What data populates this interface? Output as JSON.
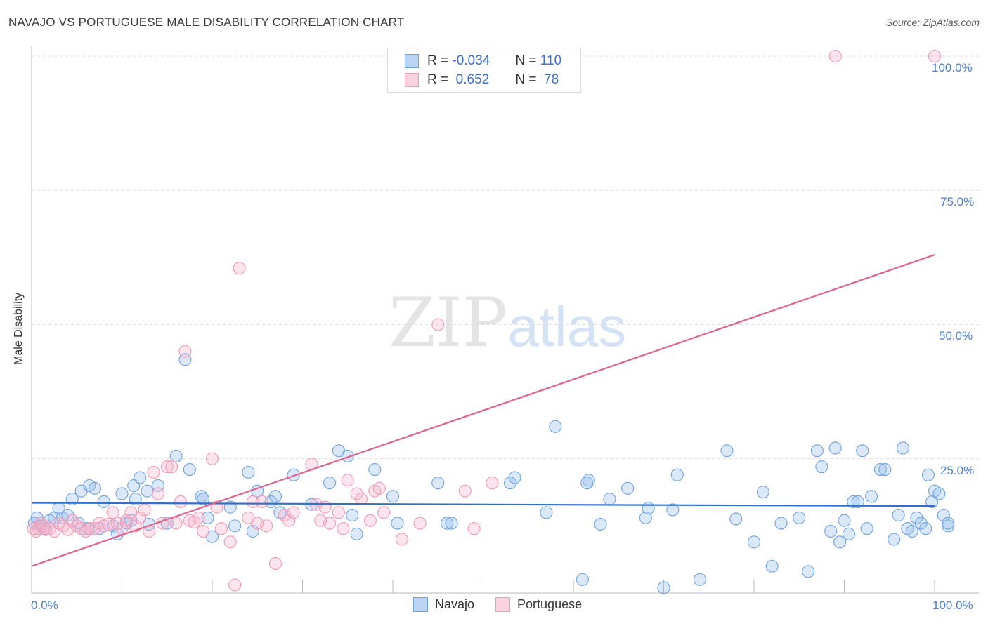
{
  "title": "NAVAJO VS PORTUGUESE MALE DISABILITY CORRELATION CHART",
  "source": "Source: ZipAtlas.com",
  "watermark_zip": "ZIP",
  "watermark_atlas": "atlas",
  "legend": {
    "row1": {
      "r_label": "R = ",
      "r_value": "-0.034",
      "n_label": "N = ",
      "n_value": "110"
    },
    "row2": {
      "r_label": "R = ",
      "r_value": " 0.652",
      "n_label": "N = ",
      "n_value": " 78"
    }
  },
  "bottom_legend": {
    "navajo": "Navajo",
    "portuguese": "Portuguese"
  },
  "axis": {
    "x_min_label": "0.0%",
    "x_max_label": "100.0%",
    "y_labels": [
      "25.0%",
      "50.0%",
      "75.0%",
      "100.0%"
    ]
  },
  "chart_data": {
    "type": "scatter",
    "title": "NAVAJO VS PORTUGUESE MALE DISABILITY CORRELATION CHART",
    "xlabel": "",
    "ylabel": "Male Disability",
    "xlim": [
      0,
      100
    ],
    "ylim": [
      0,
      100
    ],
    "grid": true,
    "legend_placement": "top-center",
    "colors": {
      "navajo": "#6fa3e0",
      "portuguese": "#f19ab8",
      "navajo_line": "#2e6fd0",
      "portuguese_line": "#e0638f"
    },
    "series": [
      {
        "name": "Navajo",
        "r": -0.034,
        "n": 110,
        "trend": [
          [
            0,
            16.8
          ],
          [
            100,
            16.2
          ]
        ],
        "points": [
          [
            0.3,
            13
          ],
          [
            0.6,
            14
          ],
          [
            1,
            12.5
          ],
          [
            1.4,
            12
          ],
          [
            2,
            13.5
          ],
          [
            2.5,
            14
          ],
          [
            3,
            15.8
          ],
          [
            3.4,
            14
          ],
          [
            4,
            14.5
          ],
          [
            4.5,
            17.5
          ],
          [
            5.2,
            13
          ],
          [
            5.5,
            19
          ],
          [
            6.2,
            12
          ],
          [
            6.4,
            20
          ],
          [
            7,
            19.5
          ],
          [
            7.5,
            12
          ],
          [
            8,
            17
          ],
          [
            9,
            12.5
          ],
          [
            9.5,
            11
          ],
          [
            10,
            18.5
          ],
          [
            10.5,
            13
          ],
          [
            11,
            13.5
          ],
          [
            11.3,
            20
          ],
          [
            11.5,
            17.5
          ],
          [
            12,
            21.5
          ],
          [
            12.8,
            19
          ],
          [
            13,
            12.8
          ],
          [
            14,
            20
          ],
          [
            15,
            13
          ],
          [
            16,
            25.5
          ],
          [
            17,
            43.5
          ],
          [
            17.5,
            23
          ],
          [
            18.8,
            18
          ],
          [
            19,
            17.5
          ],
          [
            19.5,
            14
          ],
          [
            20,
            10.5
          ],
          [
            22,
            16
          ],
          [
            22.5,
            12.5
          ],
          [
            24,
            22.5
          ],
          [
            24.5,
            11.5
          ],
          [
            25,
            19
          ],
          [
            26.5,
            17
          ],
          [
            27,
            18
          ],
          [
            27.5,
            15
          ],
          [
            29,
            22
          ],
          [
            31,
            16.5
          ],
          [
            33,
            20.5
          ],
          [
            34,
            26.5
          ],
          [
            35,
            25.5
          ],
          [
            35.5,
            14.5
          ],
          [
            36,
            11
          ],
          [
            38,
            23
          ],
          [
            40,
            18
          ],
          [
            40.5,
            13
          ],
          [
            45,
            20.5
          ],
          [
            46,
            13
          ],
          [
            46.5,
            13
          ],
          [
            53,
            20.5
          ],
          [
            53.5,
            21.5
          ],
          [
            57,
            15
          ],
          [
            58,
            31
          ],
          [
            61,
            2.5
          ],
          [
            61.5,
            20.5
          ],
          [
            61.7,
            21
          ],
          [
            63,
            12.8
          ],
          [
            64,
            17.5
          ],
          [
            66,
            19.5
          ],
          [
            68,
            14
          ],
          [
            68.3,
            15.8
          ],
          [
            70,
            1
          ],
          [
            71,
            15.5
          ],
          [
            71.5,
            22
          ],
          [
            74,
            2.5
          ],
          [
            77,
            26.5
          ],
          [
            78,
            13.8
          ],
          [
            80,
            9.5
          ],
          [
            81,
            18.8
          ],
          [
            82,
            5
          ],
          [
            83,
            13
          ],
          [
            85,
            14
          ],
          [
            86,
            4
          ],
          [
            87,
            26.5
          ],
          [
            87.5,
            23.5
          ],
          [
            88.5,
            11.5
          ],
          [
            89,
            27
          ],
          [
            89.5,
            9.5
          ],
          [
            90,
            13.5
          ],
          [
            90.5,
            11
          ],
          [
            91,
            17
          ],
          [
            91.5,
            17
          ],
          [
            92,
            26.5
          ],
          [
            92.5,
            12
          ],
          [
            93,
            18
          ],
          [
            94,
            23
          ],
          [
            94.5,
            23
          ],
          [
            95.5,
            10
          ],
          [
            96,
            14.5
          ],
          [
            96.5,
            27
          ],
          [
            97,
            12
          ],
          [
            97.5,
            11.5
          ],
          [
            98,
            14
          ],
          [
            98.5,
            13
          ],
          [
            99,
            12
          ],
          [
            99.3,
            22
          ],
          [
            99.7,
            17
          ],
          [
            100,
            19
          ],
          [
            100.5,
            18.5
          ],
          [
            101,
            14.5
          ],
          [
            101.5,
            12.5
          ],
          [
            102,
            13
          ]
        ]
      },
      {
        "name": "Portuguese",
        "r": 0.652,
        "n": 78,
        "trend": [
          [
            0,
            5.0
          ],
          [
            100,
            63.0
          ]
        ],
        "points": [
          [
            0.2,
            12
          ],
          [
            0.5,
            11.5
          ],
          [
            0.8,
            12
          ],
          [
            1,
            13
          ],
          [
            1.3,
            12.5
          ],
          [
            1.6,
            11.8
          ],
          [
            2,
            12
          ],
          [
            2.5,
            11.5
          ],
          [
            3,
            13
          ],
          [
            3.5,
            12.5
          ],
          [
            4,
            11.8
          ],
          [
            4.5,
            13.5
          ],
          [
            5,
            12.5
          ],
          [
            5.5,
            12
          ],
          [
            6,
            11.5
          ],
          [
            6.5,
            12
          ],
          [
            7,
            12
          ],
          [
            7.5,
            13
          ],
          [
            8,
            12.5
          ],
          [
            8.5,
            12.8
          ],
          [
            9,
            15
          ],
          [
            9.5,
            13
          ],
          [
            10,
            12
          ],
          [
            10.5,
            13.5
          ],
          [
            11,
            15
          ],
          [
            11.5,
            12.5
          ],
          [
            12,
            14
          ],
          [
            12.5,
            15.5
          ],
          [
            13,
            11.5
          ],
          [
            13.5,
            22.5
          ],
          [
            14,
            18.5
          ],
          [
            14.5,
            13
          ],
          [
            15,
            23.5
          ],
          [
            15.5,
            23.5
          ],
          [
            16,
            13
          ],
          [
            16.5,
            17
          ],
          [
            17,
            45
          ],
          [
            17.5,
            13.5
          ],
          [
            18,
            13.2
          ],
          [
            18.5,
            14
          ],
          [
            19,
            11.5
          ],
          [
            20,
            25
          ],
          [
            20.5,
            16
          ],
          [
            21,
            12
          ],
          [
            22,
            9.5
          ],
          [
            22.5,
            1.5
          ],
          [
            23,
            60.5
          ],
          [
            24,
            14
          ],
          [
            24.5,
            17
          ],
          [
            25,
            13
          ],
          [
            25.5,
            17
          ],
          [
            26,
            12.5
          ],
          [
            27,
            5.5
          ],
          [
            28,
            14.5
          ],
          [
            28.5,
            13.5
          ],
          [
            29,
            15
          ],
          [
            31,
            24
          ],
          [
            31.5,
            16.5
          ],
          [
            32,
            13.5
          ],
          [
            32.5,
            16
          ],
          [
            33,
            13
          ],
          [
            34,
            15
          ],
          [
            34.5,
            12
          ],
          [
            35,
            21
          ],
          [
            36,
            18.5
          ],
          [
            36.5,
            17.5
          ],
          [
            37.5,
            13.5
          ],
          [
            38,
            19
          ],
          [
            38.5,
            19.5
          ],
          [
            39,
            15
          ],
          [
            41,
            10
          ],
          [
            43,
            13
          ],
          [
            45,
            50
          ],
          [
            48,
            19
          ],
          [
            49,
            12
          ],
          [
            51,
            20.5
          ],
          [
            89,
            100
          ],
          [
            100,
            100
          ]
        ]
      }
    ]
  }
}
